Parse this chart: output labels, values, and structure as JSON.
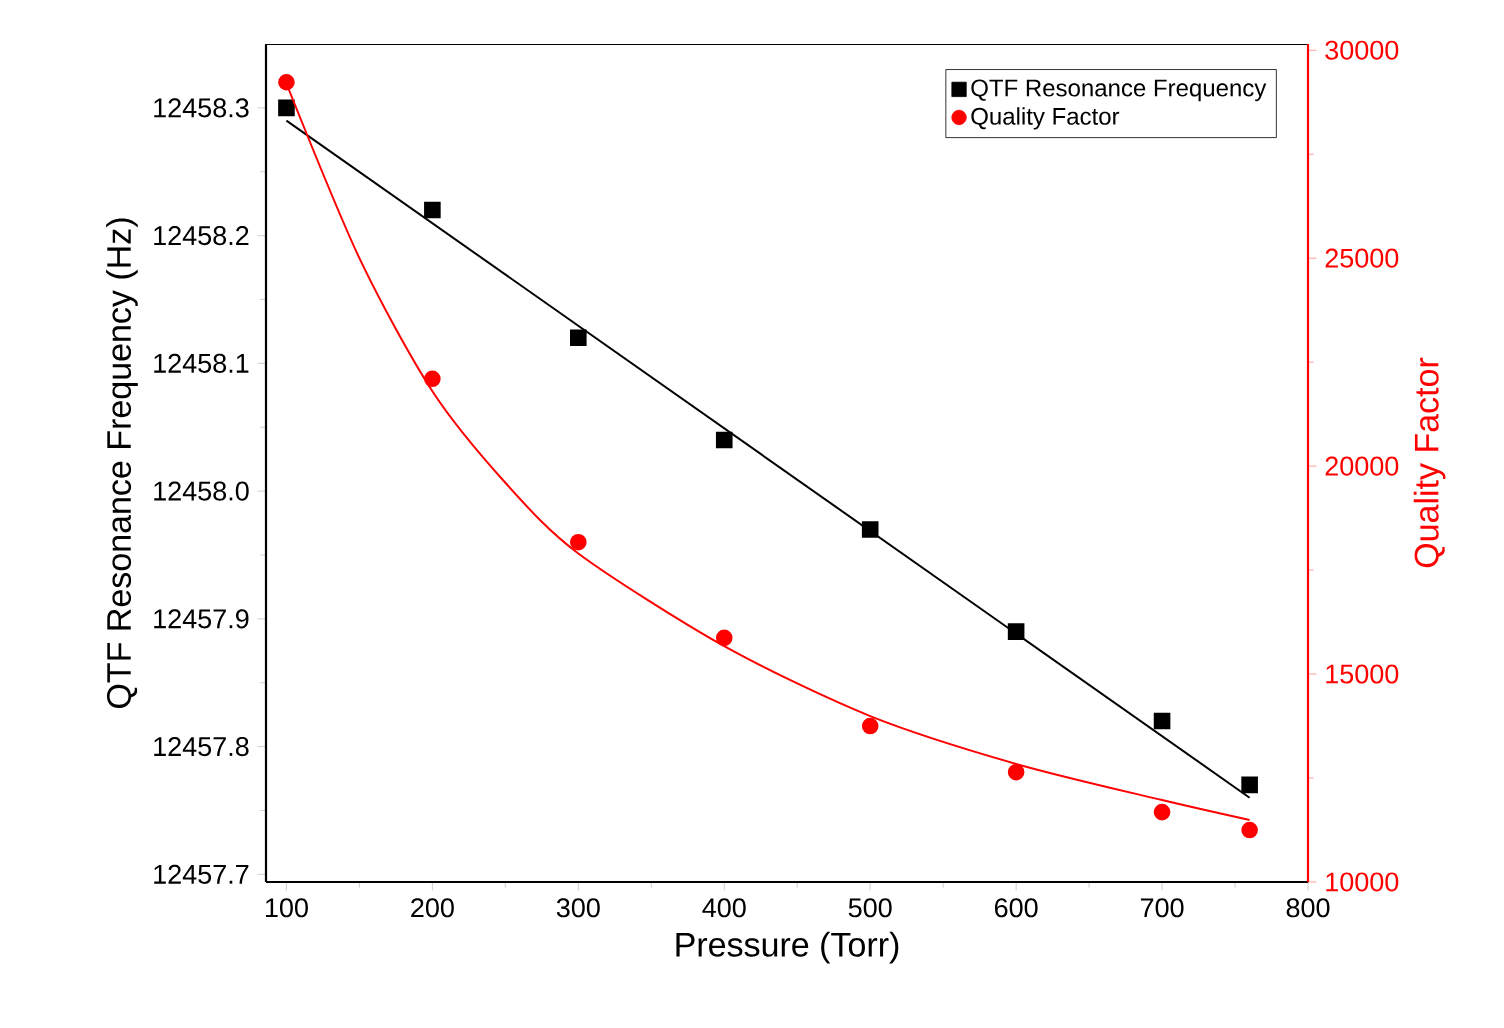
{
  "chart_data": {
    "type": "scatter",
    "xlabel": "Pressure (Torr)",
    "ylabel": "QTF Resonance Frequency (Hz)",
    "y2label": "Quality Factor",
    "xlim": [
      86,
      800
    ],
    "xticks": [
      100,
      200,
      300,
      400,
      500,
      600,
      700,
      800
    ],
    "ylim": [
      12457.694,
      12458.35
    ],
    "yticks": [
      {
        "value": 12457.7,
        "label": "12457.7"
      },
      {
        "value": 12457.8,
        "label": "12457.8"
      },
      {
        "value": 12457.9,
        "label": "12457.9"
      },
      {
        "value": 12458.0,
        "label": "12458.0"
      },
      {
        "value": 12458.1,
        "label": "12458.1"
      },
      {
        "value": 12458.2,
        "label": "12458.2"
      },
      {
        "value": 12458.3,
        "label": "12458.3"
      }
    ],
    "y2lim": [
      10000,
      30150
    ],
    "y2ticks": [
      10000,
      15000,
      20000,
      25000,
      30000
    ],
    "legend": "top right",
    "grid": false,
    "series": [
      {
        "name": "QTF Resonance Frequency",
        "marker": "square",
        "color": "#000000",
        "x": [
          100,
          200,
          300,
          400,
          500,
          600,
          700,
          760
        ],
        "values": [
          12458.3,
          12458.22,
          12458.12,
          12458.04,
          12457.97,
          12457.89,
          12457.82,
          12457.77
        ]
      },
      {
        "name": "Quality Factor",
        "marker": "circle",
        "color": "#ff0000",
        "axis": "y2",
        "x": [
          100,
          200,
          300,
          400,
          500,
          600,
          700,
          760
        ],
        "values": [
          29230,
          22100,
          18170,
          15870,
          13750,
          12640,
          11680,
          11250
        ]
      },
      {
        "type": "line",
        "marker": "none",
        "color": "#000000",
        "x": [
          100,
          760
        ],
        "values": [
          12458.29,
          12457.76
        ]
      },
      {
        "type": "line",
        "marker": "none",
        "color": "#ff0000",
        "axis": "y2",
        "x": [
          100,
          150,
          200,
          250,
          300,
          400,
          500,
          600,
          700,
          760
        ],
        "values": [
          29200,
          25000,
          21800,
          19600,
          17900,
          15670,
          13990,
          12840,
          11970,
          11490
        ]
      }
    ]
  }
}
